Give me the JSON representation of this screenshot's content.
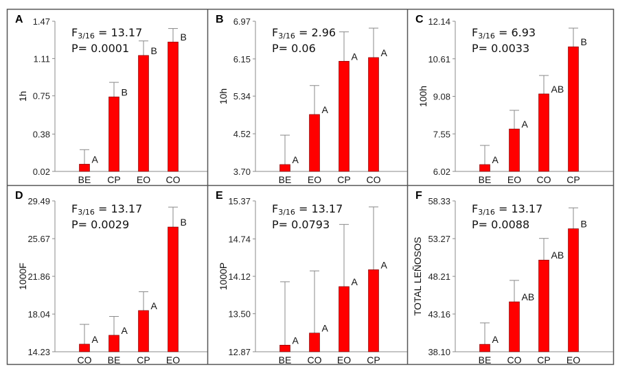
{
  "colors": {
    "bar": "#ff0000",
    "bar_edge": "#6a0000",
    "axis": "#888888",
    "error_bar": "#888888"
  },
  "chart_data": [
    {
      "type": "bar",
      "panel": "A",
      "ylabel": "1h",
      "stat_f": "F3/16 = 13.17",
      "stat_f_main": "F",
      "stat_f_sub": "3/16",
      "stat_f_val": " = 13.17",
      "stat_p": "P= 0.0001",
      "yticks": [
        "0.02",
        "0.38",
        "0.75",
        "1.11",
        "1.47"
      ],
      "ylim": [
        0.02,
        1.47
      ],
      "categories": [
        "BE",
        "CP",
        "EO",
        "CO"
      ],
      "values": [
        0.09,
        0.74,
        1.14,
        1.27
      ],
      "error_upper": [
        0.23,
        0.88,
        1.28,
        1.4
      ],
      "letters": [
        "A",
        "B",
        "B",
        "B"
      ]
    },
    {
      "type": "bar",
      "panel": "B",
      "ylabel": "10h",
      "stat_f_main": "F",
      "stat_f_sub": "3/16",
      "stat_f_val": " = 2.96",
      "stat_p": "P= 0.06",
      "yticks": [
        "3.70",
        "4.52",
        "5.34",
        "6.15",
        "6.97"
      ],
      "ylim": [
        3.7,
        6.97
      ],
      "categories": [
        "BE",
        "EO",
        "CP",
        "CO"
      ],
      "values": [
        3.85,
        4.94,
        6.1,
        6.18
      ],
      "error_upper": [
        4.49,
        5.57,
        6.74,
        6.82
      ],
      "letters": [
        "A",
        "A",
        "A",
        "A"
      ]
    },
    {
      "type": "bar",
      "panel": "C",
      "ylabel": "100h",
      "stat_f_main": "F",
      "stat_f_sub": "3/16",
      "stat_f_val": " = 6.93",
      "stat_p": "P= 0.0033",
      "yticks": [
        "6.02",
        "7.55",
        "9.08",
        "10.61",
        "12.14"
      ],
      "ylim": [
        6.02,
        12.14
      ],
      "categories": [
        "BE",
        "EO",
        "CO",
        "CP"
      ],
      "values": [
        6.3,
        7.75,
        9.18,
        11.1
      ],
      "error_upper": [
        7.08,
        8.51,
        9.93,
        11.86
      ],
      "letters": [
        "A",
        "A",
        "AB",
        "B"
      ]
    },
    {
      "type": "bar",
      "panel": "D",
      "ylabel": "1000F",
      "stat_f_main": "F",
      "stat_f_sub": "3/16",
      "stat_f_val": " = 13.17",
      "stat_p": "P= 0.0029",
      "yticks": [
        "14.23",
        "18.04",
        "21.86",
        "25.67",
        "29.49"
      ],
      "ylim": [
        14.23,
        29.49
      ],
      "categories": [
        "CO",
        "BE",
        "CP",
        "EO"
      ],
      "values": [
        15.0,
        15.9,
        18.4,
        26.85
      ],
      "error_upper": [
        17.0,
        17.8,
        20.3,
        28.86
      ],
      "letters": [
        "A",
        "A",
        "A",
        "B"
      ]
    },
    {
      "type": "bar",
      "panel": "E",
      "ylabel": "1000P",
      "stat_f_main": "F",
      "stat_f_sub": "3/16",
      "stat_f_val": " = 13.17",
      "stat_p": "P= 0.0793",
      "yticks": [
        "12.87",
        "13.50",
        "14.12",
        "14.74",
        "15.37"
      ],
      "ylim": [
        12.87,
        15.37
      ],
      "categories": [
        "BE",
        "CO",
        "EO",
        "CP"
      ],
      "values": [
        12.98,
        13.18,
        13.95,
        14.23
      ],
      "error_upper": [
        14.03,
        14.21,
        14.98,
        15.27
      ],
      "letters": [
        "A",
        "A",
        "A",
        "A"
      ]
    },
    {
      "type": "bar",
      "panel": "F",
      "ylabel": "TOTAL LEÑOSOS",
      "stat_f_main": "F",
      "stat_f_sub": "3/16",
      "stat_f_val": " = 13.17",
      "stat_p": "P= 0.0088",
      "yticks": [
        "38.10",
        "43.16",
        "48.21",
        "53.27",
        "58.33"
      ],
      "ylim": [
        38.1,
        58.33
      ],
      "categories": [
        "BE",
        "CO",
        "CP",
        "EO"
      ],
      "values": [
        39.1,
        44.8,
        50.4,
        54.6
      ],
      "error_upper": [
        41.97,
        47.67,
        53.3,
        57.4
      ],
      "letters": [
        "A",
        "AB",
        "AB",
        "B"
      ]
    }
  ]
}
